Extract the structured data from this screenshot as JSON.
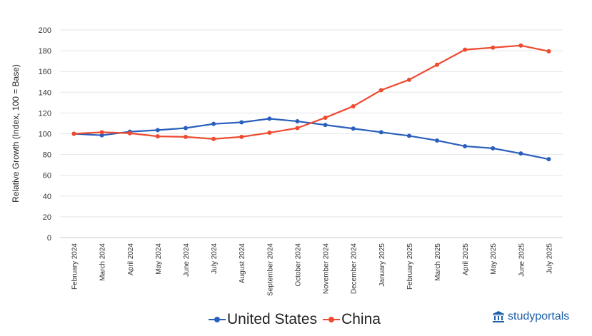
{
  "chart_data": {
    "type": "line",
    "title": "",
    "xlabel": "",
    "ylabel": "Relative Growth (Index, 100 = Base)",
    "ylim": [
      0,
      200
    ],
    "yticks": [
      0,
      20,
      40,
      60,
      80,
      100,
      120,
      140,
      160,
      180,
      200
    ],
    "grid": true,
    "legend": "bottom-center",
    "categories": [
      "February 2024",
      "March 2024",
      "April 2024",
      "May 2024",
      "June 2024",
      "July 2024",
      "August 2024",
      "September 2024",
      "October 2024",
      "November 2024",
      "December 2024",
      "January 2025",
      "February 2025",
      "March 2025",
      "April 2025",
      "May 2025",
      "June 2025",
      "July 2025"
    ],
    "series": [
      {
        "name": "United States",
        "color": "#2a5fbd",
        "values": [
          100,
          98.5,
          102,
          103.5,
          105.5,
          109.5,
          111,
          114.5,
          112,
          108.5,
          105,
          101.5,
          98,
          93.5,
          88,
          86,
          81,
          75.5
        ]
      },
      {
        "name": "China",
        "color": "#ee4a2f",
        "values": [
          100,
          101.5,
          100.5,
          97.5,
          97,
          95,
          97,
          101,
          105.5,
          115.5,
          126.5,
          142,
          152,
          166.5,
          181,
          183,
          185,
          179.5
        ]
      }
    ]
  },
  "brand": {
    "name": "studyportals",
    "color": "#1f5fa8",
    "icon": "institution-icon"
  }
}
